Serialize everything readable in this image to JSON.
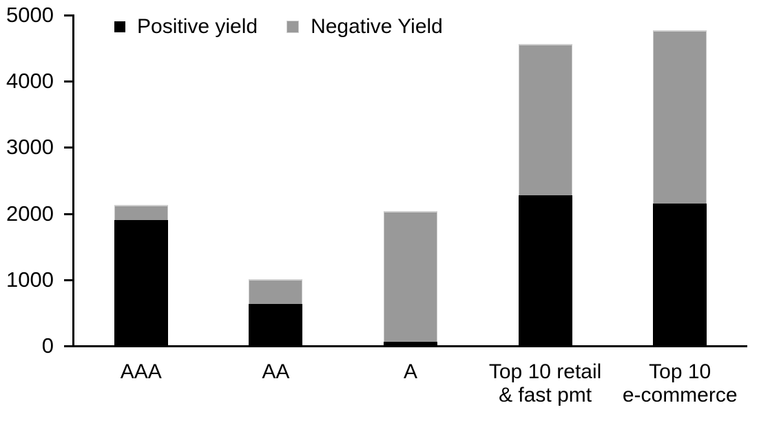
{
  "chart_data": {
    "type": "bar",
    "stacked": true,
    "title": "",
    "xlabel": "",
    "ylabel": "",
    "categories": [
      "AAA",
      "AA",
      "A",
      "Top 10 retail\n& fast pmt",
      "Top 10\ne-commerce"
    ],
    "series": [
      {
        "name": "Positive yield",
        "color": "#000000",
        "values": [
          1900,
          630,
          60,
          2280,
          2150
        ]
      },
      {
        "name": "Negative Yield",
        "color": "#999999",
        "values": [
          230,
          380,
          1980,
          2280,
          2620
        ]
      }
    ],
    "stack_totals": [
      2130,
      1010,
      2040,
      4560,
      4770
    ],
    "ylim": [
      0,
      5000
    ],
    "yticks": [
      0,
      1000,
      2000,
      3000,
      4000,
      5000
    ],
    "grid": false,
    "legend_position": "top-inside",
    "colors": {
      "axis": "#000000",
      "positive_series": "#000000",
      "negative_series": "#999999",
      "negative_bar_edge": "#cfcfcf",
      "text": "#000000",
      "background": "#ffffff"
    }
  }
}
